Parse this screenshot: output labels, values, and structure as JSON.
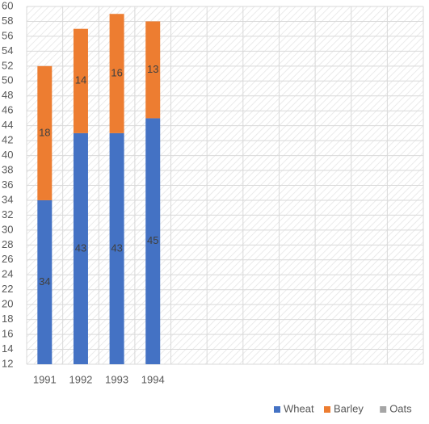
{
  "chart_data": {
    "type": "stacked_bar",
    "categories": [
      "1991",
      "1992",
      "1993",
      "1994",
      null,
      null,
      null,
      null,
      null,
      null,
      null
    ],
    "series": [
      {
        "name": "Wheat",
        "color": "#4472c4",
        "values": [
          34,
          43,
          43,
          45,
          null,
          null,
          null,
          null,
          null,
          null,
          null
        ]
      },
      {
        "name": "Barley",
        "color": "#ed7d31",
        "values": [
          18,
          14,
          16,
          13,
          null,
          null,
          null,
          null,
          null,
          null,
          null
        ]
      },
      {
        "name": "Oats",
        "color": "#a5a5a5",
        "values": [
          null,
          null,
          null,
          null,
          null,
          null,
          null,
          null,
          null,
          null,
          null
        ]
      }
    ],
    "ylim": [
      12,
      60
    ],
    "yticks": [
      12,
      14,
      16,
      18,
      20,
      22,
      24,
      26,
      28,
      30,
      32,
      34,
      36,
      38,
      40,
      42,
      44,
      46,
      48,
      50,
      52,
      54,
      56,
      58,
      60
    ],
    "grid": true,
    "legend": "bottom-right"
  }
}
